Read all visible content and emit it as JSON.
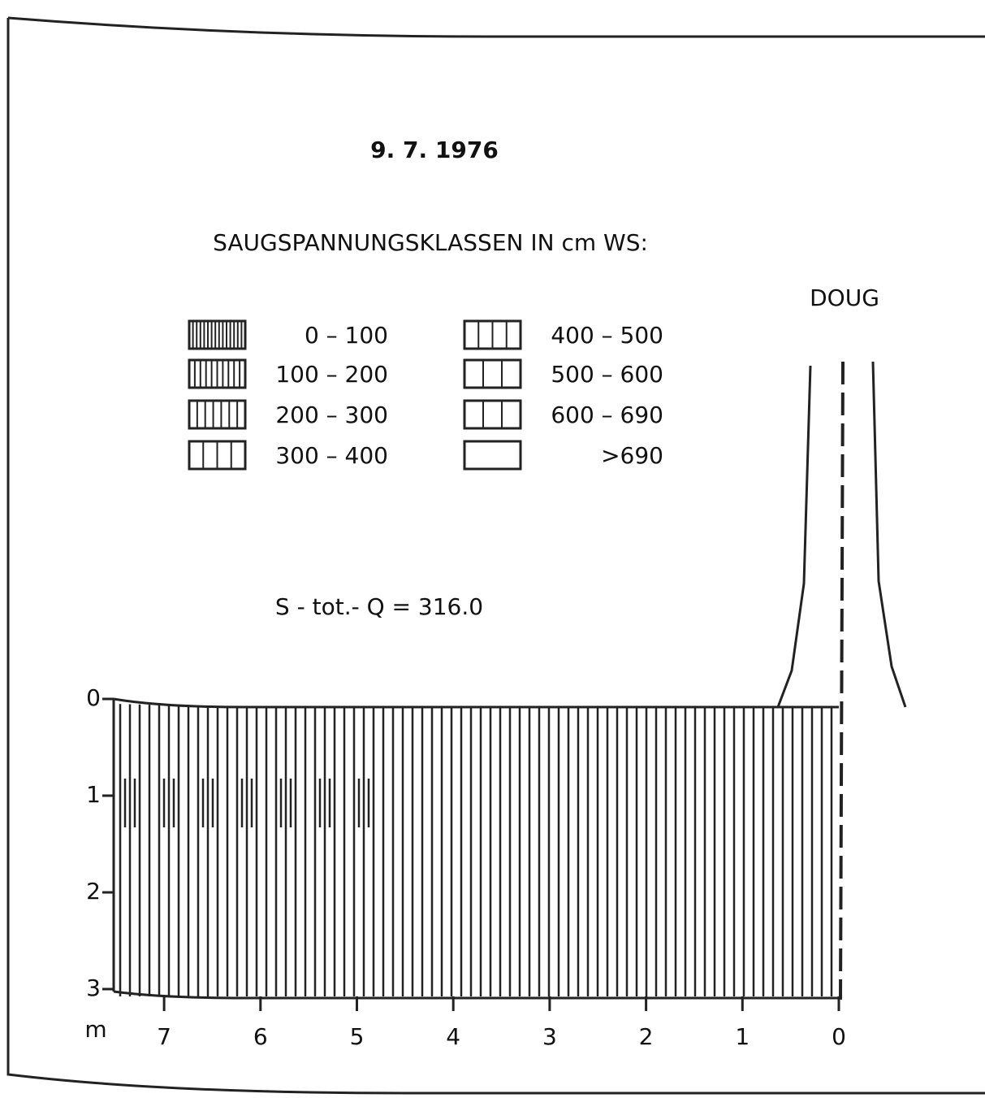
{
  "title": "9. 7. 1976",
  "legend": {
    "heading": "SAUGSPANNUNGSKLASSEN IN cm WS:",
    "classes": [
      "0 – 100",
      "100 – 200",
      "200 – 300",
      "300 – 400",
      "400 – 500",
      "500 – 600",
      "600 – 690",
      ">690"
    ]
  },
  "annotation": "S - tot.- Q = 316.0",
  "tree_label": "DOUG",
  "axes": {
    "depth_ticks": [
      0,
      1,
      2,
      3
    ],
    "distance_unit": "m",
    "distance_ticks": [
      7,
      6,
      5,
      4,
      3,
      2,
      1,
      0
    ]
  }
}
